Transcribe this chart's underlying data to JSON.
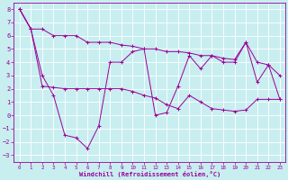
{
  "xlabel": "Windchill (Refroidissement éolien,°C)",
  "xlim": [
    -0.5,
    23.5
  ],
  "ylim": [
    -3.5,
    8.5
  ],
  "xticks": [
    0,
    1,
    2,
    3,
    4,
    5,
    6,
    7,
    8,
    9,
    10,
    11,
    12,
    13,
    14,
    15,
    16,
    17,
    18,
    19,
    20,
    21,
    22,
    23
  ],
  "yticks": [
    -3,
    -2,
    -1,
    0,
    1,
    2,
    3,
    4,
    5,
    6,
    7,
    8
  ],
  "bg_color": "#c8eef0",
  "grid_color": "#b8dfe2",
  "line_color": "#990099",
  "line1_x": [
    0,
    1,
    2,
    3,
    4,
    5,
    6,
    7,
    8,
    9,
    10,
    11,
    12,
    13,
    14,
    15,
    16,
    17,
    18,
    19,
    20,
    21,
    22,
    23
  ],
  "line1_y": [
    8.0,
    6.5,
    6.5,
    6.0,
    6.0,
    6.0,
    5.5,
    5.5,
    5.5,
    5.3,
    5.2,
    5.0,
    5.0,
    4.8,
    4.8,
    4.7,
    4.5,
    4.5,
    4.3,
    4.2,
    5.5,
    4.0,
    3.8,
    3.0
  ],
  "line2_x": [
    0,
    1,
    2,
    3,
    4,
    5,
    6,
    7,
    8,
    9,
    10,
    11,
    12,
    13,
    14,
    15,
    16,
    17,
    18,
    19,
    20,
    21,
    22,
    23
  ],
  "line2_y": [
    8.0,
    6.5,
    3.0,
    1.5,
    -1.5,
    -1.7,
    -2.5,
    -0.8,
    4.0,
    4.0,
    4.8,
    5.0,
    0.0,
    0.2,
    2.2,
    4.5,
    3.5,
    4.5,
    4.0,
    4.0,
    5.5,
    2.5,
    3.8,
    1.2
  ],
  "line3_x": [
    0,
    1,
    2,
    3,
    4,
    5,
    6,
    7,
    8,
    9,
    10,
    11,
    12,
    13,
    14,
    15,
    16,
    17,
    18,
    19,
    20,
    21,
    22,
    23
  ],
  "line3_y": [
    8.0,
    6.5,
    2.2,
    2.1,
    2.0,
    2.0,
    2.0,
    2.0,
    2.0,
    2.0,
    1.8,
    1.5,
    1.3,
    0.8,
    0.5,
    1.5,
    1.0,
    0.5,
    0.4,
    0.3,
    0.4,
    1.2,
    1.2,
    1.2
  ]
}
